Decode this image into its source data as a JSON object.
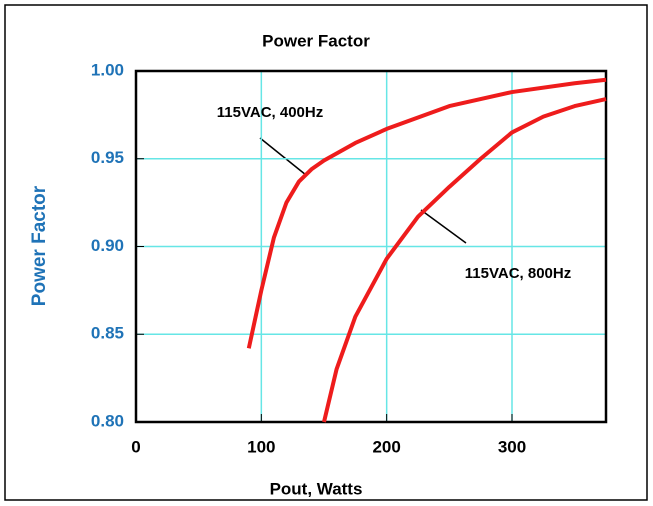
{
  "chart_data": {
    "type": "line",
    "title": "Power Factor",
    "xlabel": "Pout, Watts",
    "ylabel": "Power Factor",
    "xlim": [
      0,
      375
    ],
    "ylim": [
      0.8,
      1.0
    ],
    "xticks": [
      0,
      100,
      200,
      300
    ],
    "yticks": [
      {
        "value": 0.8,
        "label": "0.80"
      },
      {
        "value": 0.85,
        "label": "0.85"
      },
      {
        "value": 0.9,
        "label": "0.90"
      },
      {
        "value": 0.95,
        "label": "0.95"
      },
      {
        "value": 1.0,
        "label": "1.00"
      }
    ],
    "grid": true,
    "grid_color": "#66e6e6",
    "axis_label_color": "#1f73b7",
    "series": [
      {
        "name": "115VAC, 400Hz",
        "color": "#ee1c1c",
        "x": [
          90,
          100,
          110,
          120,
          130,
          140,
          150,
          175,
          200,
          250,
          300,
          350,
          375
        ],
        "values": [
          0.842,
          0.875,
          0.905,
          0.925,
          0.937,
          0.944,
          0.949,
          0.959,
          0.967,
          0.98,
          0.988,
          0.993,
          0.995
        ]
      },
      {
        "name": "115VAC, 800Hz",
        "color": "#ee1c1c",
        "x": [
          150,
          160,
          175,
          200,
          225,
          250,
          275,
          300,
          325,
          350,
          375
        ],
        "values": [
          0.8,
          0.83,
          0.86,
          0.893,
          0.917,
          0.934,
          0.95,
          0.965,
          0.974,
          0.98,
          0.984
        ]
      }
    ]
  }
}
